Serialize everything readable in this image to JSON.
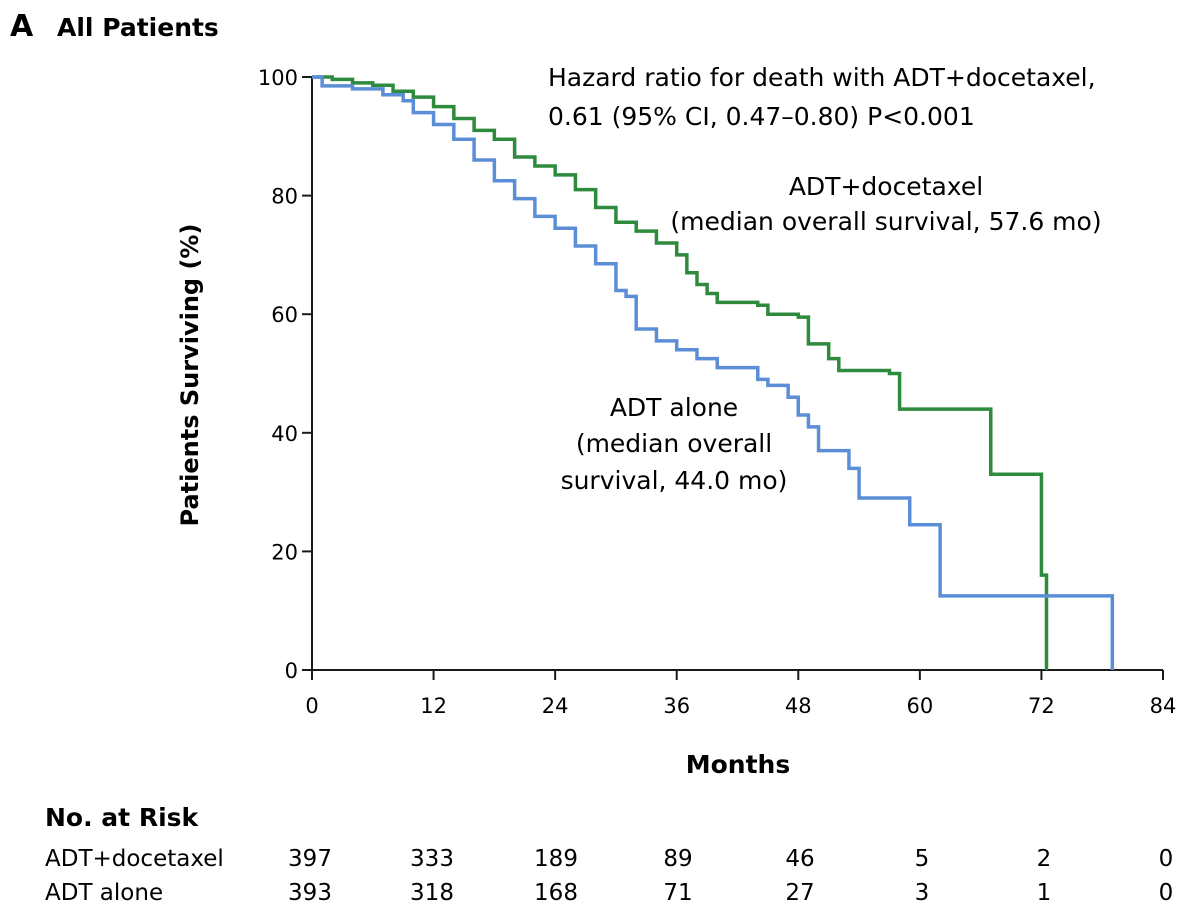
{
  "panel": {
    "letter": "A",
    "title": "All Patients"
  },
  "annotations": {
    "hazard_line1": "Hazard ratio for death with ADT+docetaxel,",
    "hazard_line2": "0.61 (95% CI, 0.47–0.80) P<0.001",
    "doce_line1": "ADT+docetaxel",
    "doce_line2": "(median overall survival, 57.6 mo)",
    "alone_line1": "ADT alone",
    "alone_line2": "(median overall",
    "alone_line3": "survival, 44.0 mo)"
  },
  "colors": {
    "docetaxel": "#2e8b3e",
    "alone": "#5b8ed6",
    "axis": "#1a1a1a"
  },
  "chart_data": {
    "type": "line",
    "step": true,
    "xlabel": "Months",
    "ylabel": "Patients Surviving (%)",
    "xlim": [
      0,
      84
    ],
    "ylim": [
      0,
      100
    ],
    "xticks": [
      0,
      12,
      24,
      36,
      48,
      60,
      72,
      84
    ],
    "yticks": [
      0,
      20,
      40,
      60,
      80,
      100
    ],
    "grid": false,
    "series": [
      {
        "name": "ADT+docetaxel",
        "color": "#2e8b3e",
        "points": [
          [
            0,
            100
          ],
          [
            2,
            99.6
          ],
          [
            4,
            99
          ],
          [
            6,
            98.6
          ],
          [
            8,
            97.6
          ],
          [
            10,
            96.6
          ],
          [
            12,
            95
          ],
          [
            14,
            93
          ],
          [
            16,
            91
          ],
          [
            18,
            89.5
          ],
          [
            20,
            86.5
          ],
          [
            22,
            85
          ],
          [
            24,
            83.5
          ],
          [
            26,
            81
          ],
          [
            28,
            78
          ],
          [
            30,
            75.5
          ],
          [
            32,
            74
          ],
          [
            34,
            72
          ],
          [
            36,
            70
          ],
          [
            37,
            67
          ],
          [
            38,
            65
          ],
          [
            39,
            63.5
          ],
          [
            40,
            62
          ],
          [
            44,
            61.5
          ],
          [
            45,
            60
          ],
          [
            48,
            59.5
          ],
          [
            49,
            55
          ],
          [
            51,
            52.5
          ],
          [
            52,
            50.5
          ],
          [
            57,
            50
          ],
          [
            58,
            44
          ],
          [
            67,
            44
          ],
          [
            67,
            33
          ],
          [
            72,
            33
          ],
          [
            72,
            16
          ],
          [
            72.5,
            0
          ]
        ]
      },
      {
        "name": "ADT alone",
        "color": "#5b8ed6",
        "points": [
          [
            0,
            100
          ],
          [
            1,
            98.5
          ],
          [
            4,
            98
          ],
          [
            7,
            97
          ],
          [
            9,
            96
          ],
          [
            10,
            94
          ],
          [
            12,
            92
          ],
          [
            14,
            89.5
          ],
          [
            16,
            86
          ],
          [
            18,
            82.5
          ],
          [
            20,
            79.5
          ],
          [
            22,
            76.5
          ],
          [
            24,
            74.5
          ],
          [
            26,
            71.5
          ],
          [
            28,
            68.5
          ],
          [
            30,
            64
          ],
          [
            31,
            63
          ],
          [
            32,
            57.5
          ],
          [
            34,
            55.5
          ],
          [
            36,
            54
          ],
          [
            38,
            52.5
          ],
          [
            40,
            51
          ],
          [
            44,
            49
          ],
          [
            45,
            48
          ],
          [
            47,
            46
          ],
          [
            48,
            43
          ],
          [
            49,
            41
          ],
          [
            50,
            37
          ],
          [
            53,
            34
          ],
          [
            54,
            29
          ],
          [
            59,
            29
          ],
          [
            59,
            24.5
          ],
          [
            62,
            24.5
          ],
          [
            62,
            12.5
          ],
          [
            79,
            12.5
          ],
          [
            79,
            0
          ]
        ]
      }
    ]
  },
  "risk_table": {
    "title": "No. at Risk",
    "rows": [
      {
        "label": "ADT+docetaxel",
        "values": [
          "397",
          "333",
          "189",
          "89",
          "46",
          "5",
          "2",
          "0"
        ]
      },
      {
        "label": "ADT alone",
        "values": [
          "393",
          "318",
          "168",
          "71",
          "27",
          "3",
          "1",
          "0"
        ]
      }
    ]
  }
}
